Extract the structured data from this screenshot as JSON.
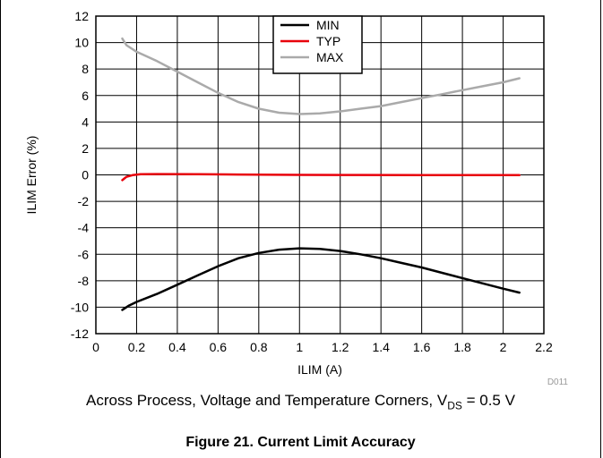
{
  "chart_data": {
    "type": "line",
    "xlabel": "ILIM (A)",
    "ylabel": "ILIM Error (%)",
    "xlim": [
      0,
      2.2
    ],
    "ylim": [
      -12,
      12
    ],
    "xticks": [
      "0",
      "0.2",
      "0.4",
      "0.6",
      "0.8",
      "1",
      "1.2",
      "1.4",
      "1.6",
      "1.8",
      "2",
      "2.2"
    ],
    "yticks": [
      "12",
      "10",
      "8",
      "6",
      "4",
      "2",
      "0",
      "-2",
      "-4",
      "-6",
      "-8",
      "-10",
      "-12"
    ],
    "grid": true,
    "legend_position": "top-center",
    "series": [
      {
        "name": "MIN",
        "color": "#000000",
        "x": [
          0.13,
          0.16,
          0.2,
          0.3,
          0.4,
          0.5,
          0.6,
          0.7,
          0.8,
          0.9,
          1.0,
          1.1,
          1.2,
          1.3,
          1.4,
          1.5,
          1.6,
          1.7,
          1.8,
          1.9,
          2.0,
          2.08
        ],
        "y": [
          -10.2,
          -9.9,
          -9.6,
          -9.0,
          -8.3,
          -7.6,
          -6.9,
          -6.3,
          -5.9,
          -5.65,
          -5.55,
          -5.6,
          -5.75,
          -6.0,
          -6.3,
          -6.65,
          -7.0,
          -7.4,
          -7.8,
          -8.2,
          -8.6,
          -8.9
        ]
      },
      {
        "name": "TYP",
        "color": "#e8000b",
        "x": [
          0.13,
          0.15,
          0.18,
          0.22,
          0.3,
          0.5,
          0.7,
          1.0,
          1.3,
          1.6,
          1.9,
          2.08
        ],
        "y": [
          -0.4,
          -0.15,
          -0.02,
          0.05,
          0.06,
          0.05,
          0.03,
          0.0,
          -0.01,
          -0.02,
          -0.02,
          -0.02
        ]
      },
      {
        "name": "MAX",
        "color": "#aaaaaa",
        "x": [
          0.13,
          0.15,
          0.2,
          0.3,
          0.4,
          0.5,
          0.6,
          0.7,
          0.8,
          0.9,
          1.0,
          1.1,
          1.2,
          1.3,
          1.4,
          1.5,
          1.6,
          1.7,
          1.8,
          1.9,
          2.0,
          2.08
        ],
        "y": [
          10.3,
          9.8,
          9.3,
          8.6,
          7.8,
          7.0,
          6.2,
          5.5,
          5.0,
          4.7,
          4.6,
          4.65,
          4.8,
          5.0,
          5.2,
          5.5,
          5.8,
          6.1,
          6.4,
          6.7,
          7.0,
          7.3
        ]
      }
    ],
    "figure_id": "D011"
  },
  "caption": {
    "text_before": "Across Process, Voltage and Temperature Corners, V",
    "subscript": "DS",
    "text_after": " = 0.5 V"
  },
  "figure_title": "Figure 21. Current Limit Accuracy"
}
